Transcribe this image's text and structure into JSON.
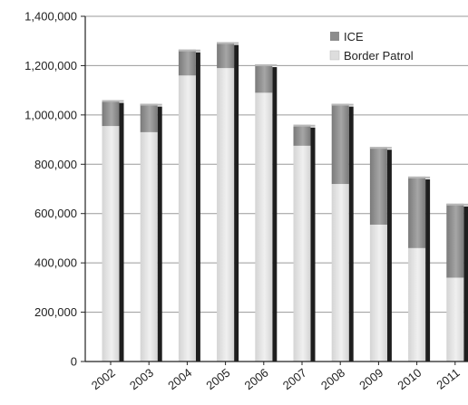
{
  "chart_data": {
    "type": "bar",
    "stacked": true,
    "categories": [
      "2002",
      "2003",
      "2004",
      "2005",
      "2006",
      "2007",
      "2008",
      "2009",
      "2010",
      "2011"
    ],
    "series": [
      {
        "name": "Border Patrol",
        "values": [
          955000,
          930000,
          1160000,
          1190000,
          1090000,
          875000,
          720000,
          555000,
          460000,
          340000
        ],
        "color": "#dddddd"
      },
      {
        "name": "ICE",
        "values": [
          105000,
          115000,
          105000,
          105000,
          115000,
          85000,
          325000,
          315000,
          290000,
          300000
        ],
        "color": "#8c8c8c"
      }
    ],
    "ylim": [
      0,
      1400000
    ],
    "yticks": [
      0,
      200000,
      400000,
      600000,
      800000,
      1000000,
      1200000,
      1400000
    ],
    "ytick_labels": [
      "0",
      "200,000",
      "400,000",
      "600,000",
      "800,000",
      "1,000,000",
      "1,200,000",
      "1,400,000"
    ],
    "grid": true,
    "legend_position": "top-right",
    "title": "",
    "xlabel": "",
    "ylabel": ""
  }
}
